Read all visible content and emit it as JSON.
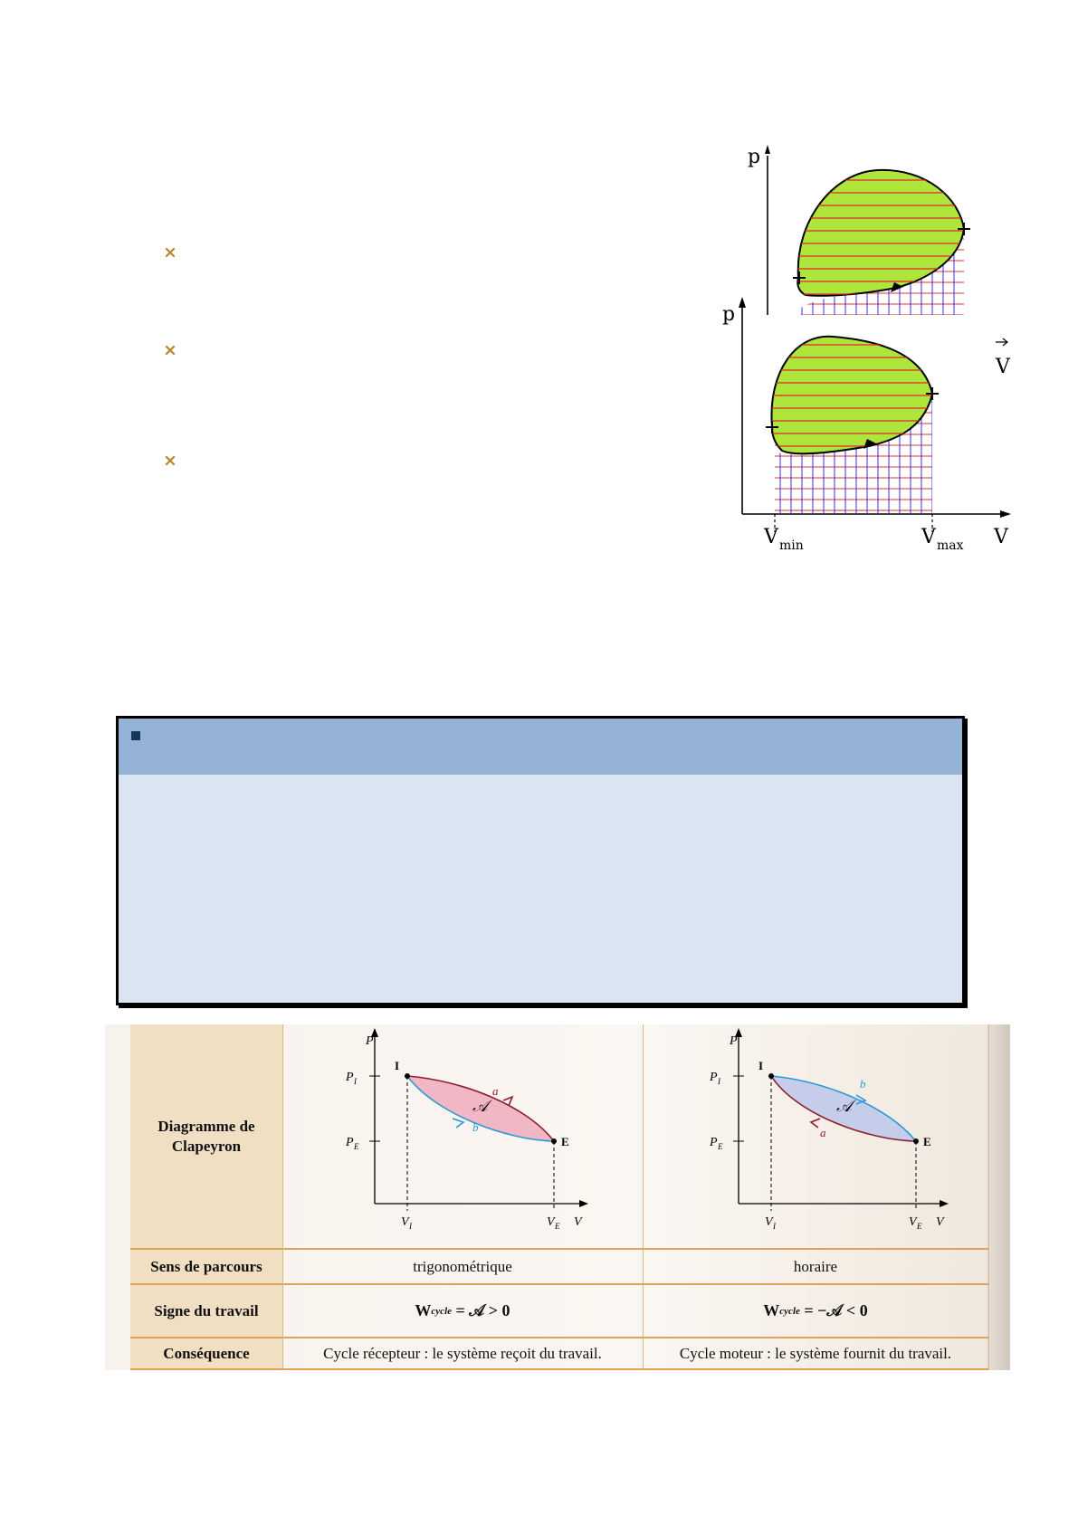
{
  "pv_diagram": {
    "axis_p_label": "p",
    "axis_v_label": "V",
    "vmin_label": "V",
    "vmin_sub": "min",
    "vmax_label": "V",
    "vmax_sub": "max"
  },
  "table": {
    "rows": [
      {
        "header": "Diagramme de Clapeyron"
      },
      {
        "header": "Sens de parcours",
        "col1": "trigonométrique",
        "col2": "horaire"
      },
      {
        "header": "Signe du travail"
      },
      {
        "header": "Conséquence",
        "col1": "Cycle récepteur : le système reçoit du travail.",
        "col2": "Cycle moteur : le système fournit du travail."
      }
    ],
    "formula1": {
      "w": "W",
      "sub": "cycle",
      "rest": "= 𝒜 > 0"
    },
    "formula2": {
      "w": "W",
      "sub": "cycle",
      "rest": "= −𝒜 < 0"
    },
    "diagram_left": {
      "p_axis": "P",
      "v_axis": "V",
      "pi": "P",
      "pi_sub": "I",
      "pe": "P",
      "pe_sub": "E",
      "vi": "V",
      "vi_sub": "I",
      "ve": "V",
      "ve_sub": "E",
      "point_i": "I",
      "point_e": "E",
      "curve_a": "a",
      "curve_b": "b",
      "area": "𝒜"
    },
    "diagram_right": {
      "p_axis": "P",
      "v_axis": "V",
      "pi": "P",
      "pi_sub": "I",
      "pe": "P",
      "pe_sub": "E",
      "vi": "V",
      "vi_sub": "I",
      "ve": "V",
      "ve_sub": "E",
      "point_i": "I",
      "point_e": "E",
      "curve_a": "a",
      "curve_b": "b",
      "area": "𝒜"
    }
  },
  "colors": {
    "bullet": "#b8862b",
    "box_header": "#95b3d7",
    "box_body": "#dbe5f1",
    "cycle_fill": "#aee63c",
    "hatch_red": "#e03030",
    "hatch_blue": "#3030e0",
    "table_accent": "#e0a25a"
  }
}
